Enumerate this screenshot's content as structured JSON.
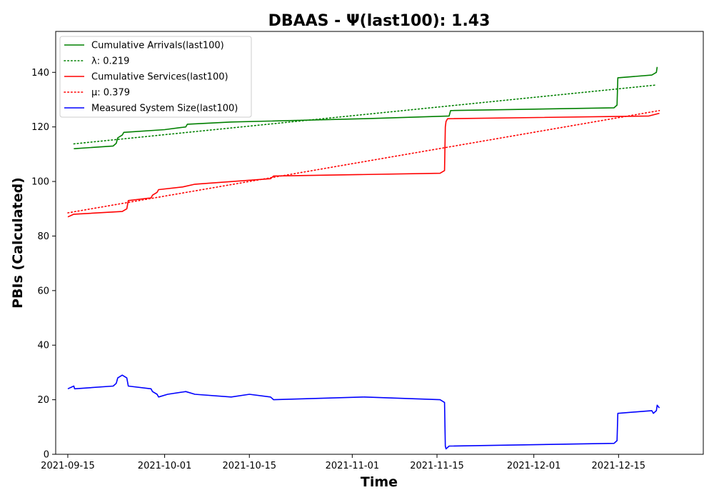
{
  "chart_data": {
    "type": "line",
    "title": "DBAAS -  Ψ(last100): 1.43",
    "xlabel": "Time",
    "ylabel": "PBIs (Calculated)",
    "xlim": [
      "2021-09-13",
      "2021-12-29"
    ],
    "ylim": [
      0,
      155
    ],
    "x_ticks": [
      "2021-09-15",
      "2021-10-01",
      "2021-10-15",
      "2021-11-01",
      "2021-11-15",
      "2021-12-01",
      "2021-12-15"
    ],
    "y_ticks": [
      0,
      20,
      40,
      60,
      80,
      100,
      120,
      140
    ],
    "grid": false,
    "legend_position": "top-left",
    "series": [
      {
        "name": "Cumulative Arrivals(last100)",
        "color": "#008000",
        "style": "solid",
        "points": [
          [
            "2021-09-16T00:00",
            112
          ],
          [
            "2021-09-22T12:00",
            113
          ],
          [
            "2021-09-23T00:00",
            114
          ],
          [
            "2021-09-23T06:00",
            116
          ],
          [
            "2021-09-24T00:00",
            117
          ],
          [
            "2021-09-24T06:00",
            118
          ],
          [
            "2021-10-01T00:00",
            119
          ],
          [
            "2021-10-04T12:00",
            120
          ],
          [
            "2021-10-04T18:00",
            121
          ],
          [
            "2021-10-12T00:00",
            121.8
          ],
          [
            "2021-11-03T00:00",
            123
          ],
          [
            "2021-11-17T00:00",
            124
          ],
          [
            "2021-11-17T06:00",
            126
          ],
          [
            "2021-12-14T06:00",
            127
          ],
          [
            "2021-12-14T18:00",
            128
          ],
          [
            "2021-12-14T21:00",
            138
          ],
          [
            "2021-12-20T12:00",
            139
          ],
          [
            "2021-12-21T06:00",
            140
          ],
          [
            "2021-12-21T09:00",
            142
          ]
        ]
      },
      {
        "name": "λ: 0.219",
        "color": "#008000",
        "style": "dotted",
        "points": [
          [
            "2021-09-16T00:00",
            113.8
          ],
          [
            "2021-12-21T00:00",
            135.3
          ]
        ]
      },
      {
        "name": "Cumulative Services(last100)",
        "color": "#ff0000",
        "style": "solid",
        "points": [
          [
            "2021-09-15T00:00",
            87
          ],
          [
            "2021-09-16T00:00",
            88
          ],
          [
            "2021-09-24T00:00",
            89
          ],
          [
            "2021-09-24T18:00",
            90
          ],
          [
            "2021-09-25T00:00",
            93
          ],
          [
            "2021-09-28T18:00",
            94
          ],
          [
            "2021-09-29T00:00",
            95
          ],
          [
            "2021-09-29T18:00",
            96
          ],
          [
            "2021-09-30T00:00",
            97
          ],
          [
            "2021-10-04T00:00",
            98
          ],
          [
            "2021-10-06T00:00",
            99
          ],
          [
            "2021-10-18T12:00",
            101
          ],
          [
            "2021-10-19T00:00",
            102
          ],
          [
            "2021-11-15T12:00",
            103
          ],
          [
            "2021-11-16T06:00",
            104
          ],
          [
            "2021-11-16T09:00",
            120
          ],
          [
            "2021-11-16T12:00",
            122
          ],
          [
            "2021-11-16T18:00",
            123
          ],
          [
            "2021-12-20T00:00",
            124
          ],
          [
            "2021-12-21T18:00",
            125
          ]
        ]
      },
      {
        "name": "μ: 0.379",
        "color": "#ff0000",
        "style": "dotted",
        "points": [
          [
            "2021-09-15T00:00",
            88.5
          ],
          [
            "2021-12-21T18:00",
            126
          ]
        ]
      },
      {
        "name": "Measured System Size(last100)",
        "color": "#0000ff",
        "style": "solid",
        "points": [
          [
            "2021-09-15T00:00",
            24
          ],
          [
            "2021-09-16T00:00",
            25
          ],
          [
            "2021-09-16T03:00",
            24
          ],
          [
            "2021-09-22T12:00",
            25
          ],
          [
            "2021-09-23T00:00",
            26
          ],
          [
            "2021-09-23T06:00",
            28
          ],
          [
            "2021-09-24T00:00",
            29
          ],
          [
            "2021-09-24T18:00",
            28
          ],
          [
            "2021-09-25T00:00",
            25
          ],
          [
            "2021-09-28T18:00",
            24
          ],
          [
            "2021-09-29T00:00",
            23
          ],
          [
            "2021-09-29T18:00",
            22
          ],
          [
            "2021-09-30T00:00",
            21
          ],
          [
            "2021-10-01T12:00",
            22
          ],
          [
            "2021-10-04T12:00",
            23
          ],
          [
            "2021-10-06T00:00",
            22
          ],
          [
            "2021-10-12T00:00",
            21
          ],
          [
            "2021-10-15T00:00",
            22
          ],
          [
            "2021-10-18T12:00",
            21
          ],
          [
            "2021-10-19T00:00",
            20
          ],
          [
            "2021-11-03T00:00",
            21
          ],
          [
            "2021-11-15T12:00",
            20
          ],
          [
            "2021-11-16T06:00",
            19
          ],
          [
            "2021-11-16T09:00",
            3
          ],
          [
            "2021-11-16T12:00",
            2
          ],
          [
            "2021-11-17T00:00",
            3
          ],
          [
            "2021-12-14T06:00",
            4
          ],
          [
            "2021-12-14T18:00",
            5
          ],
          [
            "2021-12-14T21:00",
            15
          ],
          [
            "2021-12-20T12:00",
            16
          ],
          [
            "2021-12-20T18:00",
            15
          ],
          [
            "2021-12-21T06:00",
            16
          ],
          [
            "2021-12-21T09:00",
            18
          ],
          [
            "2021-12-21T18:00",
            17
          ]
        ]
      }
    ]
  }
}
